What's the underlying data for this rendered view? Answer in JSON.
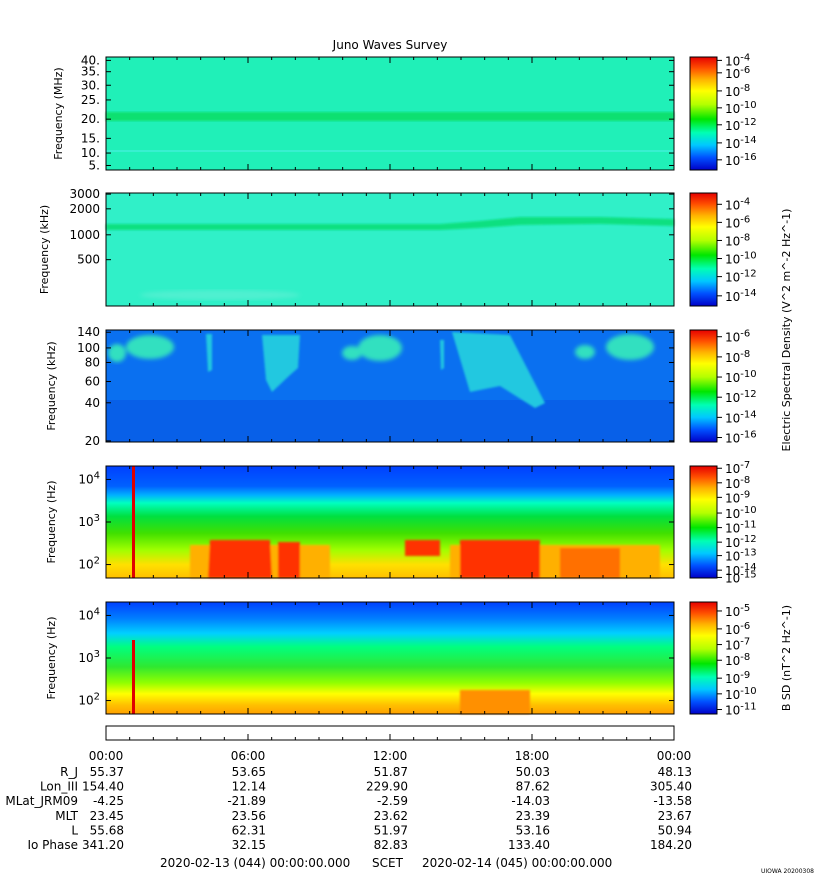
{
  "title": "Juno Waves Survey",
  "footer": {
    "start": "2020-02-13 (044) 00:00:00.000",
    "label": "SCET",
    "end": "2020-02-14 (045) 00:00:00.000",
    "stamp": "UIOWA 20200308"
  },
  "colors": {
    "colormap": [
      "#0000c8",
      "#0050ff",
      "#00c8ff",
      "#00ffb4",
      "#00e600",
      "#b4ff00",
      "#ffff00",
      "#ffb400",
      "#ff5000",
      "#e60000"
    ]
  },
  "chart_data": [
    {
      "type": "heatmap",
      "ylabel": "Frequency (MHz)",
      "yticks": [
        "40.",
        "35.",
        "30.",
        "25.",
        "20.",
        "15.",
        "10.",
        "5."
      ],
      "x_range": [
        "00:00",
        "00:00"
      ],
      "colorbar": {
        "labels": [
          "10^-4",
          "10^-6",
          "10^-8",
          "10^-10",
          "10^-12",
          "10^-14",
          "10^-16"
        ],
        "title": ""
      },
      "features": "mostly uniform ~1e-12 background, narrow enhanced band near 21 MHz"
    },
    {
      "type": "heatmap",
      "ylabel": "Frequency (kHz)",
      "yticks": [
        "3000",
        "2000",
        "1000",
        "500"
      ],
      "x_range": [
        "00:00",
        "00:00"
      ],
      "colorbar": {
        "labels": [
          "10^-4",
          "10^-6",
          "10^-8",
          "10^-10",
          "10^-12",
          "10^-14"
        ],
        "title": "Electric Spectral Density (V^2 m^-2 Hz^-1)"
      },
      "features": "uniform background, enhanced band near 1400 kHz rising to ~1600 kHz after 15:00"
    },
    {
      "type": "heatmap",
      "ylabel": "Frequency (kHz)",
      "yticks": [
        "140",
        "100",
        "80",
        "60",
        "40",
        "20"
      ],
      "x_range": [
        "00:00",
        "00:00"
      ],
      "colorbar": {
        "labels": [
          "10^-6",
          "10^-8",
          "10^-10",
          "10^-12",
          "10^-14",
          "10^-16"
        ],
        "title": ""
      },
      "features": "blue background with periodic bKOM blobs near 90-110 kHz and drifting emissions around 14:00-17:00"
    },
    {
      "type": "heatmap",
      "ylabel": "Frequency (Hz)",
      "yticks": [
        "10^4",
        "10^3",
        "10^2"
      ],
      "x_range": [
        "00:00",
        "00:00"
      ],
      "colorbar": {
        "labels": [
          "10^-7",
          "10^-8",
          "10^-9",
          "10^-10",
          "10^-11",
          "10^-12",
          "10^-13",
          "10^-14",
          "10^-15"
        ],
        "title": ""
      },
      "features": "intense low-frequency emission below ~300 Hz, strongest 04:30-07:00 and 15:00-18:00"
    },
    {
      "type": "heatmap",
      "ylabel": "Frequency (Hz)",
      "yticks": [
        "10^4",
        "10^3",
        "10^2"
      ],
      "x_range": [
        "00:00",
        "00:00"
      ],
      "colorbar": {
        "labels": [
          "10^-5",
          "10^-6",
          "10^-7",
          "10^-8",
          "10^-9",
          "10^-10",
          "10^-11"
        ],
        "title": "B SD (nT^2 Hz^-1)"
      },
      "features": "magnetic spectral density decreasing with frequency, spike near 01:10"
    }
  ],
  "ephemeris": {
    "time_labels": [
      "00:00",
      "06:00",
      "12:00",
      "18:00",
      "00:00"
    ],
    "rows": [
      {
        "label": "R_J",
        "values": [
          "55.37",
          "53.65",
          "51.87",
          "50.03",
          "48.13"
        ]
      },
      {
        "label": "Lon_III",
        "values": [
          "154.40",
          "12.14",
          "229.90",
          "87.62",
          "305.40"
        ]
      },
      {
        "label": "MLat_JRM09",
        "values": [
          "-4.25",
          "-21.89",
          "-2.59",
          "-14.03",
          "-13.58"
        ]
      },
      {
        "label": "MLT",
        "values": [
          "23.45",
          "23.56",
          "23.62",
          "23.39",
          "23.67"
        ]
      },
      {
        "label": "L",
        "values": [
          "55.68",
          "62.31",
          "51.97",
          "53.16",
          "50.94"
        ]
      },
      {
        "label": "Io Phase",
        "values": [
          "341.20",
          "32.15",
          "82.83",
          "133.40",
          "184.20"
        ]
      }
    ]
  }
}
